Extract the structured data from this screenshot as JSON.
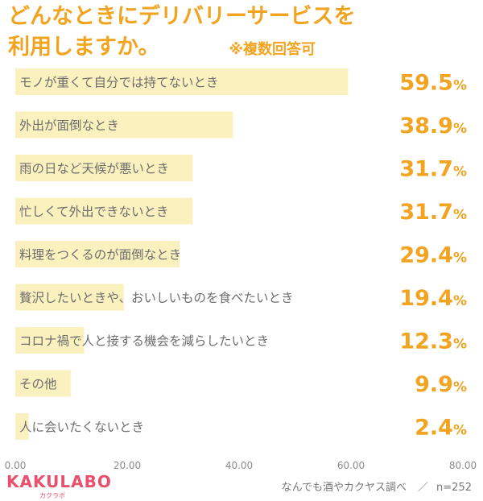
{
  "title_line1": "どんなときにデリバリーサービスを",
  "title_line2": "利用しますか。",
  "note": "※複数回答可",
  "logo": "KAKULABO",
  "logo_sub": "カクラボ",
  "source": "なんでも酒やカクヤス調べ",
  "sample": "n=252",
  "colors": {
    "accent": "#f2a31f",
    "bar": "#fbf1bf",
    "logo": "#e8506b"
  },
  "chart_data": {
    "type": "bar",
    "orientation": "horizontal",
    "categories": [
      "モノが重くて自分では持てないとき",
      "外出が面倒なとき",
      "雨の日など天候が悪いとき",
      "忙しくて外出できないとき",
      "料理をつくるのが面倒なとき",
      "贅沢したいときや、おいしいものを食べたいとき",
      "コロナ禍で人と接する機会を減らしたいとき",
      "その他",
      "人に会いたくないとき"
    ],
    "values": [
      59.5,
      38.9,
      31.7,
      31.7,
      29.4,
      19.4,
      12.3,
      9.9,
      2.4
    ],
    "value_labels": [
      "59.5",
      "38.9",
      "31.7",
      "31.7",
      "29.4",
      "19.4",
      "12.3",
      "9.9",
      "2.4"
    ],
    "unit": "%",
    "xlim": [
      0,
      80
    ],
    "xticks": [
      "0.00",
      "20.00",
      "40.00",
      "60.00",
      "80.00"
    ],
    "grid": false
  }
}
